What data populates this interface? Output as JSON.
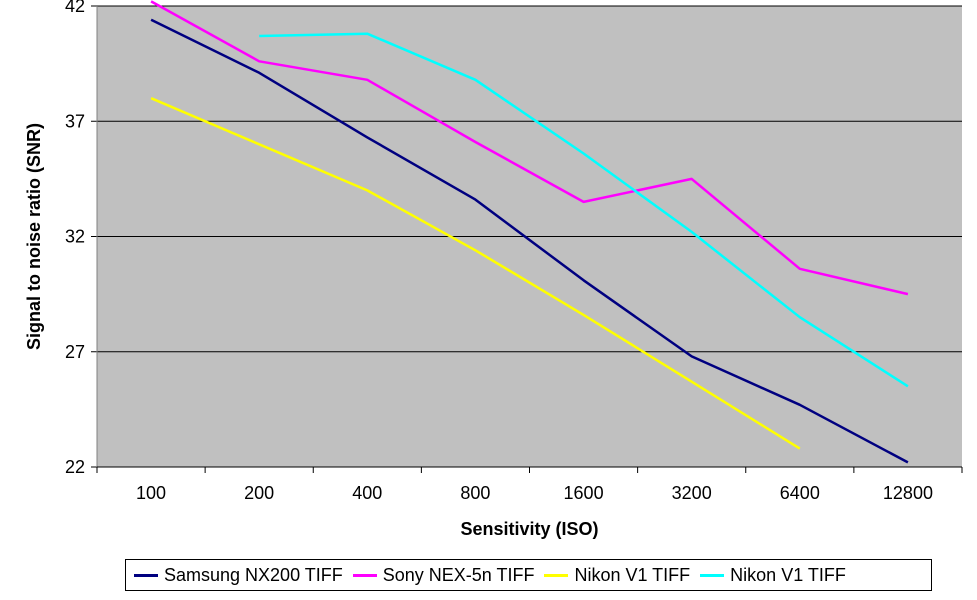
{
  "chart_data": {
    "type": "line",
    "title": "",
    "xlabel": "Sensitivity (ISO)",
    "ylabel": "Signal to noise ratio (SNR)",
    "categories": [
      "100",
      "200",
      "400",
      "800",
      "1600",
      "3200",
      "6400",
      "12800"
    ],
    "ylim": [
      22,
      42
    ],
    "yticks": [
      22,
      27,
      32,
      37,
      42
    ],
    "grid": true,
    "legend_position": "bottom",
    "plot_background": "#c0c0c0",
    "series": [
      {
        "name": "Samsung NX200 TIFF",
        "color": "#000080",
        "values": [
          41.4,
          39.1,
          36.3,
          33.6,
          30.1,
          26.8,
          24.7,
          22.2
        ]
      },
      {
        "name": "Sony NEX-5n TIFF",
        "color": "#ff00ff",
        "values": [
          42.2,
          39.6,
          38.8,
          36.1,
          33.5,
          34.5,
          30.6,
          29.5
        ]
      },
      {
        "name": "Nikon V1 TIFF",
        "color": "#ffff00",
        "values": [
          38.0,
          36.0,
          34.0,
          31.4,
          28.6,
          25.7,
          22.8,
          null
        ]
      },
      {
        "name": "Nikon V1 TIFF",
        "color": "#00ffff",
        "values": [
          null,
          40.7,
          40.8,
          38.8,
          35.6,
          32.2,
          28.5,
          25.5
        ]
      }
    ]
  }
}
